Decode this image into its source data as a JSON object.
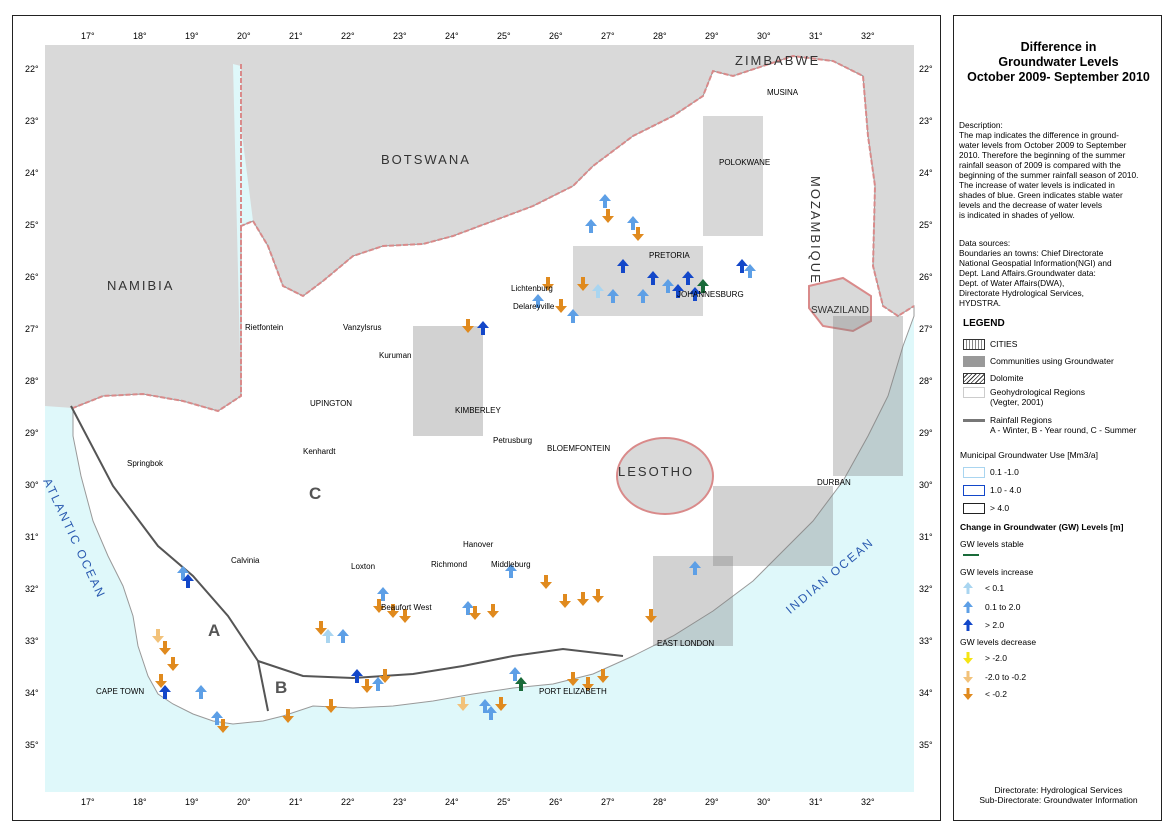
{
  "map": {
    "lon_labels": [
      "17°",
      "18°",
      "19°",
      "20°",
      "21°",
      "22°",
      "23°",
      "24°",
      "25°",
      "26°",
      "27°",
      "28°",
      "29°",
      "30°",
      "31°",
      "32°"
    ],
    "lat_labels": [
      "22°",
      "23°",
      "24°",
      "25°",
      "26°",
      "27°",
      "28°",
      "29°",
      "30°",
      "31°",
      "32°",
      "33°",
      "34°",
      "35°"
    ],
    "countries": {
      "zimbabwe": "ZIMBABWE",
      "botswana": "BOTSWANA",
      "namibia": "NAMIBIA",
      "mozambique": "MOZAMBIQUE",
      "swaziland": "SWAZILAND",
      "lesotho": "LESOTHO"
    },
    "oceans": {
      "atlantic": "ATLANTIC OCEAN",
      "indian": "INDIAN OCEAN"
    },
    "regions": {
      "a": "A",
      "b": "B",
      "c": "C"
    },
    "towns": {
      "musina": "MUSINA",
      "polokwane": "POLOKWANE",
      "pretoria": "PRETORIA",
      "johannesburg": "JOHANNESBURG",
      "lichtenburg": "Lichtenburg",
      "delareyville": "Delareyville",
      "rietfontein": "Rietfontein",
      "vanzylsrus": "Vanzylsrus",
      "kuruman": "Kuruman",
      "upington": "UPINGTON",
      "kimberley": "KIMBERLEY",
      "petrusburg": "Petrusburg",
      "bloemfontein": "BLOEMFONTEIN",
      "kenhardt": "Kenhardt",
      "springbok": "Springbok",
      "durban": "DURBAN",
      "hanover": "Hanover",
      "calvinia": "Calvinia",
      "loxton": "Loxton",
      "richmond": "Richmond",
      "middleburg": "Middleburg",
      "beaufort_west": "Beaufort West",
      "east_london": "EAST LONDON",
      "cape_town": "CAPE TOWN",
      "port_elizabeth": "PORT ELIZABETH"
    },
    "colors": {
      "ocean": "#dff8fa",
      "neighbour": "#d9d9d9",
      "border": "#d98a8a",
      "increase_light": "#a9d5f0",
      "increase_mid": "#5d9fe6",
      "increase_strong": "#1347c9",
      "decrease_yellow": "#f5e414",
      "decrease_light": "#f2c27a",
      "decrease_orange": "#e08a1e",
      "stable": "#1a6b3a"
    }
  },
  "panel": {
    "title": "Difference in\nGroundwater Levels\nOctober 2009- September 2010",
    "description": "Description:\nThe map indicates the difference in ground-\nwater levels from October 2009 to September\n2010. Therefore the beginning of the summer\nrainfall season of 2009 is compared with the\nbeginning of the summer rainfall season of 2010.\nThe increase of water levels is indicated in\nshades of blue. Green indicates stable water\nlevels and the decrease of water levels\nis indicated in shades of yellow.",
    "sources": "Data sources:\nBoundaries an towns: Chief Directorate\nNational Geospatial Information(NGI) and\nDept. Land Affairs.Groundwater data:\nDept. of Water Affairs(DWA),\nDirectorate Hydrological Services,\nHYDSTRA.",
    "legend_title": "LEGEND",
    "legend": {
      "cities": "CITIES",
      "communities": "Communities using Groundwater",
      "dolomite": "Dolomite",
      "geohydro": "Geohydrological Regions\n(Vegter, 2001)",
      "rainfall": "Rainfall Regions\nA - Winter, B - Year round, C - Summer",
      "municipal_head": "Municipal Groundwater Use [Mm3/a]",
      "use_low": "0.1 -1.0",
      "use_mid": "1.0 - 4.0",
      "use_high": "> 4.0",
      "change_head": "Change in Groundwater (GW) Levels [m]",
      "stable_head": "GW levels stable",
      "increase_head": "GW levels increase",
      "inc_1": "< 0.1",
      "inc_2": "0.1 to 2.0",
      "inc_3": "> 2.0",
      "decrease_head": "GW levels decrease",
      "dec_1": "> -2.0",
      "dec_2": "-2.0 to -0.2",
      "dec_3": "< -0.2"
    },
    "footer": "Directorate: Hydrological Services\nSub-Directorate: Groundwater Information"
  }
}
